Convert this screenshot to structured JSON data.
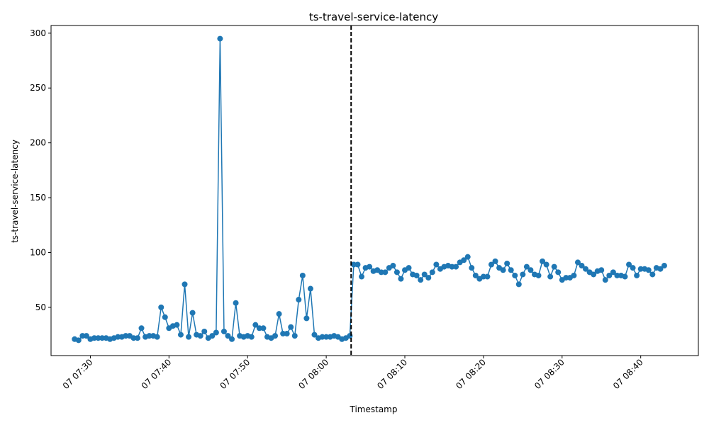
{
  "chart_data": {
    "type": "line",
    "title": "ts-travel-service-latency",
    "xlabel": "Timestamp",
    "ylabel": "ts-travel-service-latency",
    "x_start": "07 07:28",
    "x_step_seconds": 30,
    "xlim": [
      "07 07:25:00",
      "07 08:47:20"
    ],
    "ylim": [
      6,
      307
    ],
    "x_ticks": [
      "07 07:30",
      "07 07:40",
      "07 07:50",
      "07 08:00",
      "07 08:10",
      "07 08:20",
      "07 08:30",
      "07 08:40"
    ],
    "y_ticks": [
      50,
      100,
      150,
      200,
      250,
      300
    ],
    "grid": false,
    "vline": {
      "x": "07 08:03:10",
      "style": "dashed",
      "color": "#000000"
    },
    "series": [
      {
        "color": "#1f77b4",
        "marker": "circle",
        "values": [
          21,
          20,
          24,
          24,
          21,
          22,
          22,
          22,
          22,
          21,
          22,
          23,
          23,
          24,
          24,
          22,
          22,
          31,
          23,
          24,
          24,
          23,
          50,
          41,
          31,
          33,
          34,
          25,
          71,
          23,
          45,
          25,
          24,
          28,
          22,
          24,
          27,
          295,
          28,
          24,
          21,
          54,
          24,
          23,
          24,
          23,
          34,
          31,
          31,
          23,
          22,
          24,
          44,
          26,
          26,
          32,
          24,
          57,
          79,
          40,
          67,
          25,
          22,
          23,
          23,
          23,
          24,
          23,
          21,
          22,
          24,
          89,
          89,
          78,
          86,
          87,
          83,
          84,
          82,
          82,
          86,
          88,
          82,
          76,
          84,
          86,
          80,
          79,
          75,
          80,
          77,
          82,
          89,
          85,
          87,
          88,
          87,
          87,
          91,
          93,
          96,
          86,
          79,
          76,
          78,
          78,
          89,
          92,
          86,
          84,
          90,
          84,
          79,
          71,
          80,
          87,
          84,
          80,
          79,
          92,
          89,
          78,
          87,
          82,
          75,
          77,
          77,
          79,
          91,
          88,
          85,
          82,
          80,
          83,
          84,
          75,
          79,
          82,
          79,
          79,
          78,
          89,
          86,
          79,
          85,
          85,
          84,
          80,
          86,
          85,
          88
        ]
      }
    ]
  }
}
